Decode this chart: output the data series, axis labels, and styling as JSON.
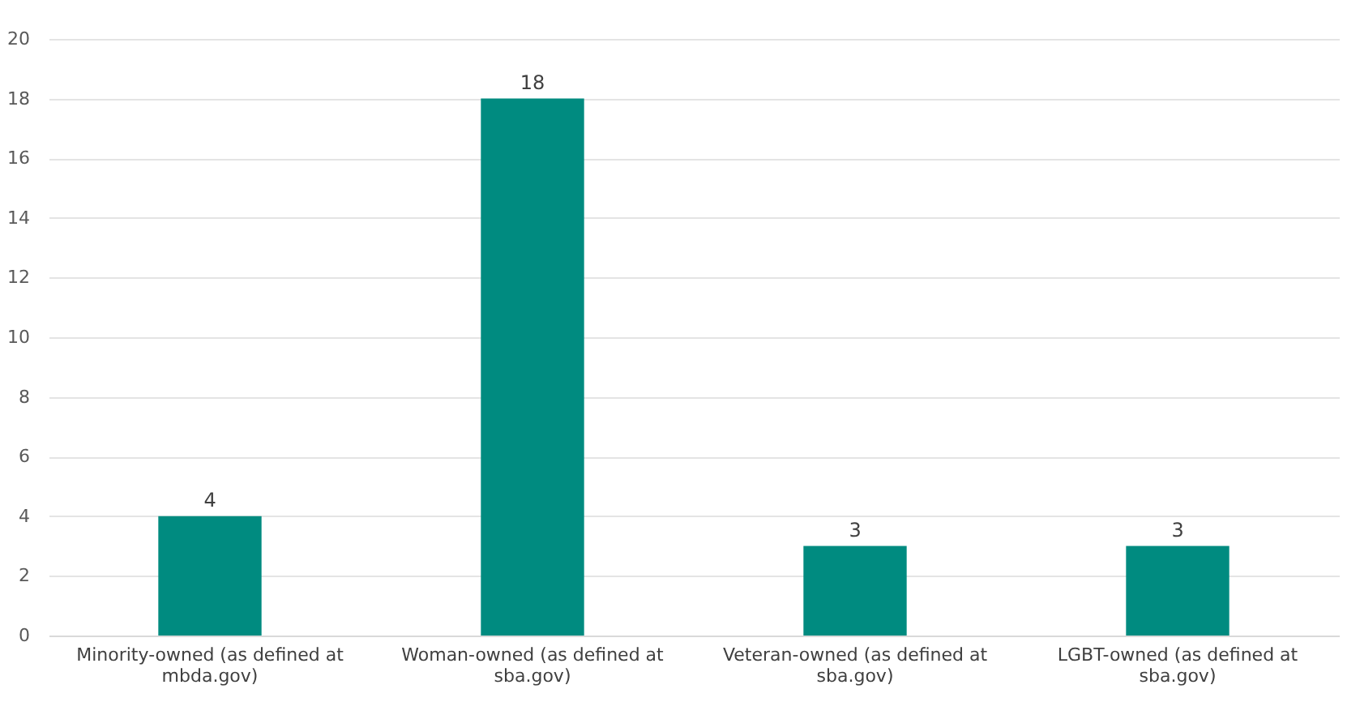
{
  "chart_data": {
    "type": "bar",
    "categories": [
      "Minority-owned (as defined at mbda.gov)",
      "Woman-owned (as defined at sba.gov)",
      "Veteran-owned (as defined at sba.gov)",
      "LGBT-owned (as defined at sba.gov)"
    ],
    "values": [
      4,
      18,
      3,
      3
    ],
    "color": "#008b80",
    "ylim": [
      0,
      20
    ],
    "yticks": [
      0,
      2,
      4,
      6,
      8,
      10,
      12,
      14,
      16,
      18,
      20
    ],
    "grid": true,
    "data_labels": true
  }
}
